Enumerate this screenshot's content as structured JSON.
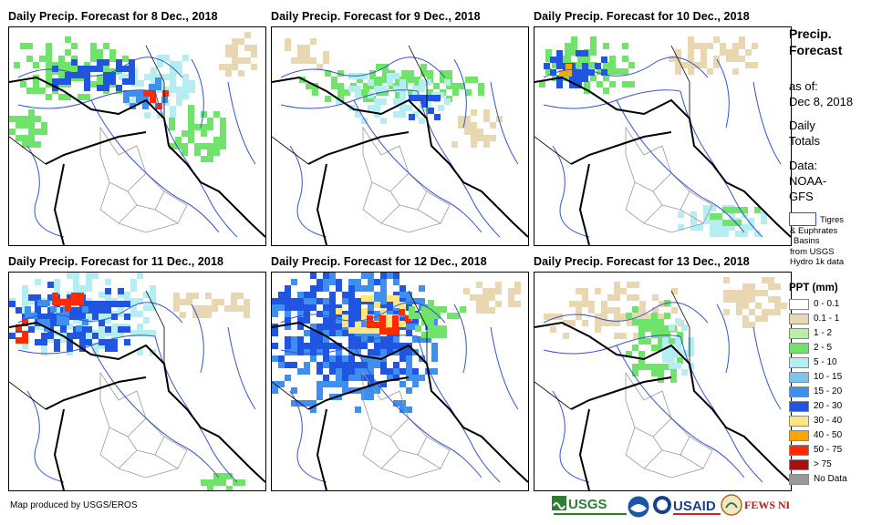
{
  "panels": [
    {
      "title": "Daily Precip. Forecast for 8 Dec., 2018",
      "blobs": [
        {
          "x": 5,
          "y": 10,
          "w": 120,
          "h": 70,
          "c": "green"
        },
        {
          "x": 120,
          "y": 30,
          "w": 80,
          "h": 70,
          "c": "cyan"
        },
        {
          "x": 40,
          "y": 35,
          "w": 110,
          "h": 30,
          "c": "blue"
        },
        {
          "x": 125,
          "y": 55,
          "w": 45,
          "h": 35,
          "c": "midblue"
        },
        {
          "x": 140,
          "y": 62,
          "w": 30,
          "h": 22,
          "c": "red"
        },
        {
          "x": 175,
          "y": 85,
          "w": 60,
          "h": 60,
          "c": "green"
        },
        {
          "x": 230,
          "y": 5,
          "w": 40,
          "h": 50,
          "c": "tan"
        },
        {
          "x": 0,
          "y": 90,
          "w": 40,
          "h": 40,
          "c": "green"
        }
      ]
    },
    {
      "title": "Daily Precip. Forecast for 9 Dec., 2018",
      "blobs": [
        {
          "x": 30,
          "y": 40,
          "w": 200,
          "h": 40,
          "c": "green"
        },
        {
          "x": 70,
          "y": 50,
          "w": 120,
          "h": 50,
          "c": "cyan"
        },
        {
          "x": 150,
          "y": 60,
          "w": 30,
          "h": 40,
          "c": "blue"
        },
        {
          "x": 0,
          "y": 5,
          "w": 60,
          "h": 40,
          "c": "tan"
        },
        {
          "x": 190,
          "y": 90,
          "w": 60,
          "h": 40,
          "c": "tan"
        }
      ]
    },
    {
      "title": "Daily Precip. Forecast for 10 Dec., 2018",
      "blobs": [
        {
          "x": 5,
          "y": 10,
          "w": 100,
          "h": 60,
          "c": "green"
        },
        {
          "x": 10,
          "y": 25,
          "w": 70,
          "h": 40,
          "c": "blue"
        },
        {
          "x": 20,
          "y": 40,
          "w": 20,
          "h": 12,
          "c": "orange"
        },
        {
          "x": 140,
          "y": 10,
          "w": 100,
          "h": 40,
          "c": "tan"
        },
        {
          "x": 150,
          "y": 195,
          "w": 110,
          "h": 30,
          "c": "cyan"
        },
        {
          "x": 185,
          "y": 190,
          "w": 60,
          "h": 25,
          "c": "green"
        }
      ]
    },
    {
      "title": "Daily Precip. Forecast for 11 Dec., 2018",
      "blobs": [
        {
          "x": 0,
          "y": 0,
          "w": 160,
          "h": 90,
          "c": "cyan"
        },
        {
          "x": 0,
          "y": 10,
          "w": 130,
          "h": 75,
          "c": "blue"
        },
        {
          "x": 10,
          "y": 30,
          "w": 80,
          "h": 30,
          "c": "midblue"
        },
        {
          "x": 40,
          "y": 22,
          "w": 40,
          "h": 15,
          "c": "red"
        },
        {
          "x": 0,
          "y": 50,
          "w": 25,
          "h": 25,
          "c": "red"
        },
        {
          "x": 180,
          "y": 15,
          "w": 80,
          "h": 30,
          "c": "tan"
        },
        {
          "x": 210,
          "y": 220,
          "w": 50,
          "h": 20,
          "c": "green"
        }
      ]
    },
    {
      "title": "Daily Precip. Forecast for 12 Dec., 2018",
      "blobs": [
        {
          "x": 0,
          "y": 0,
          "w": 180,
          "h": 150,
          "c": "midblue"
        },
        {
          "x": 0,
          "y": 0,
          "w": 160,
          "h": 120,
          "c": "blue"
        },
        {
          "x": 70,
          "y": 25,
          "w": 80,
          "h": 40,
          "c": "yellow"
        },
        {
          "x": 90,
          "y": 40,
          "w": 60,
          "h": 25,
          "c": "red"
        },
        {
          "x": 150,
          "y": 30,
          "w": 60,
          "h": 40,
          "c": "green"
        },
        {
          "x": 210,
          "y": 10,
          "w": 70,
          "h": 30,
          "c": "tan"
        }
      ]
    },
    {
      "title": "Daily Precip. Forecast for 13 Dec., 2018",
      "blobs": [
        {
          "x": 10,
          "y": 10,
          "w": 150,
          "h": 60,
          "c": "tan"
        },
        {
          "x": 100,
          "y": 30,
          "w": 60,
          "h": 90,
          "c": "green"
        },
        {
          "x": 140,
          "y": 50,
          "w": 30,
          "h": 60,
          "c": "cyan"
        },
        {
          "x": 200,
          "y": 5,
          "w": 80,
          "h": 50,
          "c": "tan"
        }
      ]
    }
  ],
  "sidebar": {
    "title_line1": "Precip.",
    "title_line2": "Forecast",
    "asof_line1": "as of:",
    "asof_line2": "Dec 8, 2018",
    "daily_line1": "Daily",
    "daily_line2": "Totals",
    "data_line1": "Data:",
    "data_line2": "NOAA-",
    "data_line3": "GFS",
    "basin_line1": "Tigres",
    "basin_line2": "& Euphrates",
    "basin_line3": "Basins",
    "basin_line4": "from USGS",
    "basin_line5": "Hydro 1k data",
    "ppt_title": "PPT (mm)"
  },
  "legend": [
    {
      "label": "0 - 0.1",
      "color": "#ffffff"
    },
    {
      "label": "0.1 - 1",
      "color": "#e8d7b0"
    },
    {
      "label": "1 - 2",
      "color": "#b8f0a8"
    },
    {
      "label": "2 - 5",
      "color": "#6fe36a"
    },
    {
      "label": "5 - 10",
      "color": "#b4eef2"
    },
    {
      "label": "10 - 15",
      "color": "#7cc3f2"
    },
    {
      "label": "15 - 20",
      "color": "#3d8ff0"
    },
    {
      "label": "20 - 30",
      "color": "#1f55e0"
    },
    {
      "label": "30 - 40",
      "color": "#ffe680"
    },
    {
      "label": "40 - 50",
      "color": "#ffa500"
    },
    {
      "label": "50 - 75",
      "color": "#ff2a00"
    },
    {
      "label": "> 75",
      "color": "#a81010"
    },
    {
      "label": "No Data",
      "color": "#999999"
    }
  ],
  "palette": {
    "tan": "#e8d7b0",
    "green": "#6fe36a",
    "cyan": "#b4eef2",
    "midblue": "#3d8ff0",
    "blue": "#1f55e0",
    "yellow": "#ffe680",
    "orange": "#ffa500",
    "red": "#ff2a00"
  },
  "footer": "Map produced by USGS/EROS",
  "logos": [
    "USGS",
    "NOAA",
    "USAID",
    "FEWS NET"
  ]
}
